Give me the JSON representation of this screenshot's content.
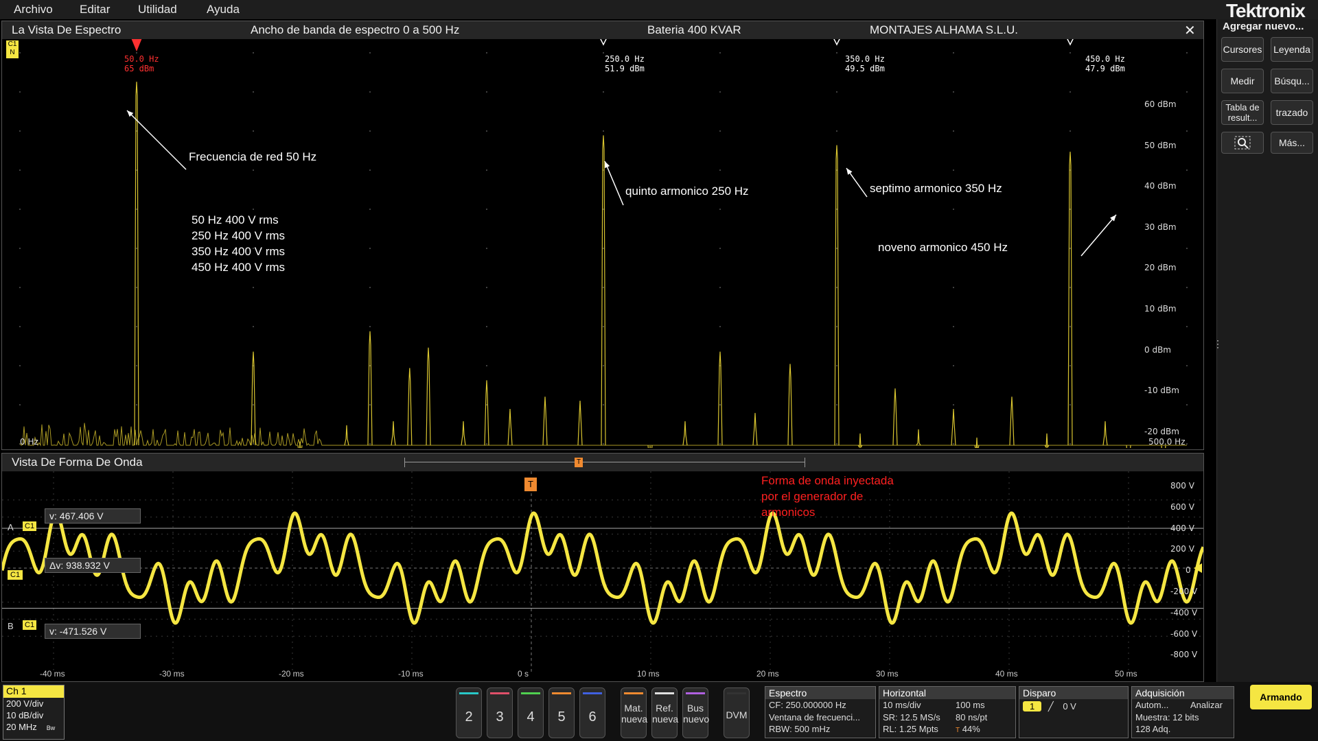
{
  "menu": [
    "Archivo",
    "Editar",
    "Utilidad",
    "Ayuda"
  ],
  "brand": "Tektronix",
  "right_panel": {
    "title": "Agregar nuevo...",
    "buttons": [
      "Cursores",
      "Leyenda",
      "Medir",
      "Búsqu...",
      "Tabla de result...",
      "trazado",
      "Más..."
    ]
  },
  "spectrum": {
    "title": "La Vista De Espectro",
    "header_center": "Ancho de banda de espectro 0 a 500 Hz",
    "header_right1": "Bateria 400 KVAR",
    "header_right2": "MONTAJES ALHAMA S.L.U.",
    "channel_tag": "C1",
    "channel_tag2": "N",
    "ref_marker": "R",
    "y_labels": [
      "60 dBm",
      "50 dBm",
      "40 dBm",
      "30 dBm",
      "20 dBm",
      "10 dBm",
      "0 dBm",
      "-10 dBm",
      "-20 dBm"
    ],
    "x_start": "0 Hz",
    "x_end": "500.0 Hz",
    "markers": [
      {
        "freq": "50.0 Hz",
        "level": "65 dBm"
      },
      {
        "freq": "250.0 Hz",
        "level": "51.9 dBm"
      },
      {
        "freq": "350.0 Hz",
        "level": "49.5 dBm"
      },
      {
        "freq": "450.0 Hz",
        "level": "47.9 dBm"
      }
    ],
    "annotations": {
      "fund": "Frecuencia de red 50 Hz",
      "h5": "quinto armonico 250 Hz",
      "h7": "septimo armonico 350 Hz",
      "h9": "noveno armonico 450 Hz",
      "list": [
        "50 Hz 400 V rms",
        "250 Hz 400 V rms",
        "350 Hz 400 V rms",
        "450 Hz 400 V rms"
      ]
    }
  },
  "waveform": {
    "title": "Vista De Forma De Onda",
    "note": [
      "Forma de onda inyectada",
      "por el generador de",
      "armonicos"
    ],
    "cursor_a": "v: 467.406 V",
    "cursor_delta": "Δv: 938.932 V",
    "cursor_b": "v: -471.526 V",
    "tag_a": "A",
    "tag_b": "B",
    "tag_c1": "C1",
    "trigger": "T",
    "y_labels": [
      "800 V",
      "600 V",
      "400 V",
      "200 V",
      "0",
      "-200 V",
      "-400 V",
      "-600 V",
      "-800 V"
    ],
    "x_labels": [
      "-40 ms",
      "-30 ms",
      "-20 ms",
      "-10 ms",
      "0 s",
      "10 ms",
      "20 ms",
      "30 ms",
      "40 ms",
      "50 ms"
    ]
  },
  "bottom": {
    "ch1": {
      "label": "Ch 1",
      "lines": [
        "200 V/div",
        "10 dB/div",
        "20 MHz"
      ],
      "bw": "Bw"
    },
    "channels": [
      {
        "num": "2",
        "color": "#28c8c8"
      },
      {
        "num": "3",
        "color": "#e0506a"
      },
      {
        "num": "4",
        "color": "#50d050"
      },
      {
        "num": "5",
        "color": "#f08a30"
      },
      {
        "num": "6",
        "color": "#4060e0"
      }
    ],
    "extras": [
      {
        "label": "Mat. nueva",
        "color": "#f08a30"
      },
      {
        "label": "Ref. nueva",
        "color": "#e0e0e0"
      },
      {
        "label": "Bus nuevo",
        "color": "#b060e0"
      },
      {
        "label": "DVM",
        "color": "#333333"
      }
    ],
    "espectro": {
      "title": "Espectro",
      "lines": [
        "CF: 250.000000 Hz",
        "Ventana de frecuenci...",
        "RBW: 500 mHz"
      ]
    },
    "horizontal": {
      "title": "Horizontal",
      "lines": [
        [
          "10 ms/div",
          "100 ms"
        ],
        [
          "SR: 12.5 MS/s",
          "80 ns/pt"
        ],
        [
          "RL: 1.25 Mpts",
          "44%"
        ]
      ]
    },
    "disparo": {
      "title": "Disparo",
      "ch": "1",
      "level": "0 V"
    },
    "adquisicion": {
      "title": "Adquisición",
      "lines": [
        [
          "Autom...",
          "Analizar"
        ],
        [
          "Muestra: 12 bits",
          ""
        ],
        [
          "128 Adq.",
          ""
        ]
      ]
    },
    "armando": "Armando"
  }
}
